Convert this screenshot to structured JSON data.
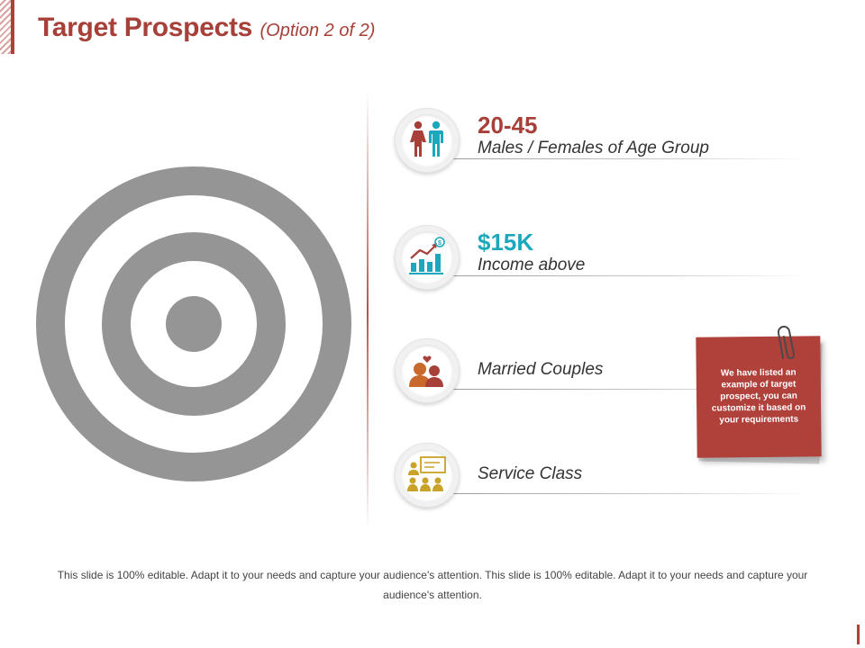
{
  "slide": {
    "title": "Target Prospects",
    "subtitle": "(Option 2 of 2)"
  },
  "colors": {
    "accent_red": "#a8403a",
    "accent_teal": "#1ba8bd",
    "accent_orange": "#c96a2c",
    "accent_gold": "#c9a227",
    "target_gray": "#959595"
  },
  "items": [
    {
      "value": "20-45",
      "description": "Males / Females of Age Group",
      "icon": "male-female-icon",
      "value_color": "#a8403a"
    },
    {
      "value": "$15K",
      "description": "Income above",
      "icon": "income-chart-icon",
      "value_color": "#1ba8bd"
    },
    {
      "value": "",
      "description": "Married Couples",
      "icon": "couple-heart-icon"
    },
    {
      "value": "",
      "description": "Service Class",
      "icon": "presentation-audience-icon"
    }
  ],
  "note": {
    "text": "We have listed an example of target prospect, you can customize it based on your requirements",
    "icon": "paperclip-icon"
  },
  "footer": {
    "text": "This slide is 100% editable. Adapt it to your needs and capture your audience's attention. This slide is 100% editable. Adapt it to your needs and capture your audience's attention."
  }
}
